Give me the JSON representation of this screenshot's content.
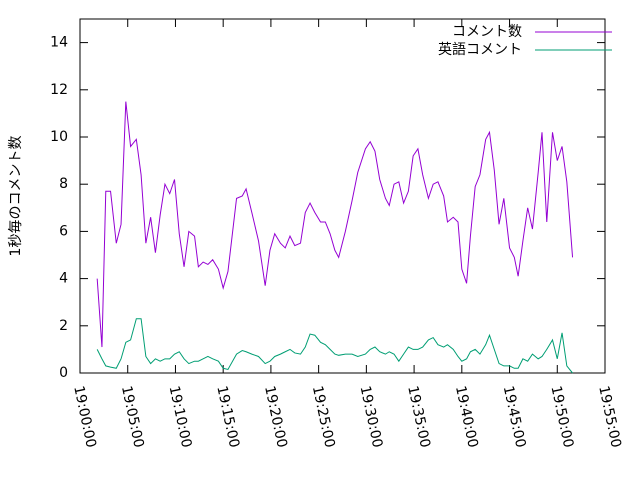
{
  "chart_data": {
    "type": "line",
    "y_label": "1秒毎のコメント数",
    "x": [
      "19:01:48",
      "19:02:18",
      "19:02:42",
      "19:03:12",
      "19:03:48",
      "19:04:18",
      "19:04:48",
      "19:05:18",
      "19:05:54",
      "19:06:24",
      "19:06:54",
      "19:07:24",
      "19:07:54",
      "19:08:24",
      "19:08:54",
      "19:09:24",
      "19:09:54",
      "19:10:24",
      "19:10:54",
      "19:11:24",
      "19:12:00",
      "19:12:24",
      "19:12:54",
      "19:13:24",
      "19:13:54",
      "19:14:30",
      "19:15:00",
      "19:15:30",
      "19:16:24",
      "19:17:00",
      "19:17:24",
      "19:18:00",
      "19:18:42",
      "19:19:24",
      "19:19:54",
      "19:20:24",
      "19:21:00",
      "19:21:30",
      "19:22:00",
      "19:22:30",
      "19:23:06",
      "19:23:36",
      "19:24:06",
      "19:24:36",
      "19:25:12",
      "19:25:42",
      "19:26:12",
      "19:26:42",
      "19:27:06",
      "19:27:48",
      "19:28:30",
      "19:29:06",
      "19:29:54",
      "19:30:24",
      "19:30:54",
      "19:31:24",
      "19:32:00",
      "19:32:24",
      "19:32:54",
      "19:33:24",
      "19:33:54",
      "19:34:24",
      "19:34:54",
      "19:35:24",
      "19:35:54",
      "19:36:30",
      "19:37:00",
      "19:37:30",
      "19:38:06",
      "19:38:30",
      "19:39:06",
      "19:39:36",
      "19:40:00",
      "19:40:30",
      "19:40:54",
      "19:41:24",
      "19:41:54",
      "19:42:30",
      "19:42:54",
      "19:43:24",
      "19:43:54",
      "19:44:24",
      "19:45:00",
      "19:45:30",
      "19:45:54",
      "19:46:24",
      "19:46:54",
      "19:47:24",
      "19:48:00",
      "19:48:24",
      "19:48:54",
      "19:49:30",
      "19:50:00",
      "19:50:30",
      "19:51:00",
      "19:51:36"
    ],
    "series": [
      {
        "name": "コメント数",
        "color": "#9400d3",
        "values": [
          4.0,
          1.1,
          7.7,
          7.7,
          5.5,
          6.3,
          11.5,
          9.6,
          9.9,
          8.4,
          5.5,
          6.6,
          5.1,
          6.7,
          8.0,
          7.6,
          8.2,
          5.9,
          4.5,
          6.0,
          5.8,
          4.5,
          4.7,
          4.6,
          4.8,
          4.4,
          3.6,
          4.3,
          7.4,
          7.5,
          7.8,
          6.8,
          5.6,
          3.7,
          5.2,
          5.9,
          5.5,
          5.3,
          5.8,
          5.4,
          5.5,
          6.8,
          7.2,
          6.8,
          6.4,
          6.4,
          5.9,
          5.2,
          4.9,
          6.0,
          7.3,
          8.5,
          9.5,
          9.8,
          9.4,
          8.2,
          7.4,
          7.1,
          8.0,
          8.1,
          7.2,
          7.7,
          9.2,
          9.5,
          8.4,
          7.4,
          8.0,
          8.1,
          7.5,
          6.4,
          6.6,
          6.4,
          4.4,
          3.8,
          5.8,
          7.9,
          8.4,
          9.9,
          10.2,
          8.6,
          6.3,
          7.4,
          5.3,
          4.9,
          4.1,
          5.6,
          7.0,
          6.1,
          8.5,
          10.2,
          6.4,
          10.2,
          9.0,
          9.6,
          8.1,
          4.9
        ]
      },
      {
        "name": "英語コメント",
        "color": "#009e73",
        "values": [
          1.0,
          0.6,
          0.3,
          0.25,
          0.2,
          0.6,
          1.3,
          1.4,
          2.3,
          2.3,
          0.7,
          0.4,
          0.6,
          0.5,
          0.6,
          0.6,
          0.8,
          0.9,
          0.6,
          0.4,
          0.5,
          0.5,
          0.6,
          0.7,
          0.6,
          0.5,
          0.2,
          0.15,
          0.8,
          0.95,
          0.9,
          0.8,
          0.7,
          0.4,
          0.5,
          0.7,
          0.8,
          0.9,
          1.0,
          0.85,
          0.8,
          1.1,
          1.65,
          1.6,
          1.3,
          1.2,
          1.0,
          0.8,
          0.75,
          0.8,
          0.8,
          0.7,
          0.8,
          1.0,
          1.1,
          0.9,
          0.8,
          0.9,
          0.8,
          0.5,
          0.8,
          1.1,
          1.0,
          1.0,
          1.1,
          1.4,
          1.5,
          1.2,
          1.1,
          1.2,
          1.0,
          0.7,
          0.5,
          0.6,
          0.9,
          1.0,
          0.8,
          1.2,
          1.6,
          1.0,
          0.4,
          0.3,
          0.3,
          0.2,
          0.2,
          0.6,
          0.5,
          0.8,
          0.6,
          0.7,
          1.0,
          1.4,
          0.6,
          1.7,
          0.3,
          0.0
        ]
      }
    ],
    "xlim": [
      "19:00:00",
      "19:55:00"
    ],
    "xticks": [
      "19:00:00",
      "19:05:00",
      "19:10:00",
      "19:15:00",
      "19:20:00",
      "19:25:00",
      "19:30:00",
      "19:35:00",
      "19:40:00",
      "19:45:00",
      "19:50:00",
      "19:55:00"
    ],
    "ylim": [
      0,
      15
    ],
    "yticks": [
      0,
      2,
      4,
      6,
      8,
      10,
      12,
      14
    ],
    "legend": "top-right",
    "grid": false
  }
}
